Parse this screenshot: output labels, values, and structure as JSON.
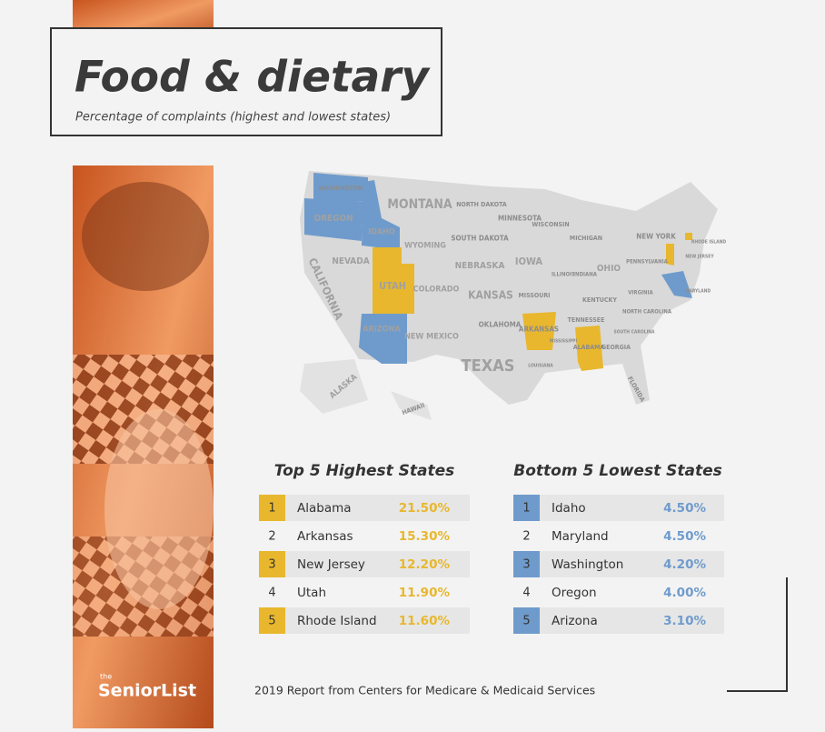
{
  "header": {
    "title": "Food & dietary",
    "subtitle": "Percentage of complaints (highest and lowest states)"
  },
  "map": {
    "labels": [
      "WASHINGTON",
      "OREGON",
      "IDAHO",
      "MONTANA",
      "NORTH DAKOTA",
      "SOUTH DAKOTA",
      "MINNESOTA",
      "WISCONSIN",
      "MICHIGAN",
      "NEW YORK",
      "WYOMING",
      "NEBRASKA",
      "IOWA",
      "ILLINOIS",
      "INDIANA",
      "OHIO",
      "PENNSYLVANIA",
      "NEVADA",
      "UTAH",
      "COLORADO",
      "KANSAS",
      "MISSOURI",
      "KENTUCKY",
      "VIRGINIA",
      "CALIFORNIA",
      "ARIZONA",
      "NEW MEXICO",
      "OKLAHOMA",
      "ARKANSAS",
      "TENNESSEE",
      "NORTH CAROLINA",
      "TEXAS",
      "MISSISSIPPI",
      "ALABAMA",
      "GEORGIA",
      "SOUTH CAROLINA",
      "LOUISIANA",
      "FLORIDA",
      "ALASKA",
      "HAWAII",
      "NEW JERSEY",
      "RHODE ISLAND",
      "MARYLAND"
    ]
  },
  "tables": [
    {
      "title": "Top 5 Highest States",
      "rows": [
        {
          "rank": "1",
          "state": "Alabama",
          "value": "21.50%"
        },
        {
          "rank": "2",
          "state": "Arkansas",
          "value": "15.30%"
        },
        {
          "rank": "3",
          "state": "New Jersey",
          "value": "12.20%"
        },
        {
          "rank": "4",
          "state": "Utah",
          "value": "11.90%"
        },
        {
          "rank": "5",
          "state": "Rhode Island",
          "value": "11.60%"
        }
      ]
    },
    {
      "title": "Bottom 5 Lowest States",
      "rows": [
        {
          "rank": "1",
          "state": "Idaho",
          "value": "4.50%"
        },
        {
          "rank": "2",
          "state": "Maryland",
          "value": "4.50%"
        },
        {
          "rank": "3",
          "state": "Washington",
          "value": "4.20%"
        },
        {
          "rank": "4",
          "state": "Oregon",
          "value": "4.00%"
        },
        {
          "rank": "5",
          "state": "Arizona",
          "value": "3.10%"
        }
      ]
    }
  ],
  "source": "2019 Report from Centers for Medicare & Medicaid Services",
  "logo": {
    "prefix": "the",
    "name": "SeniorList"
  }
}
